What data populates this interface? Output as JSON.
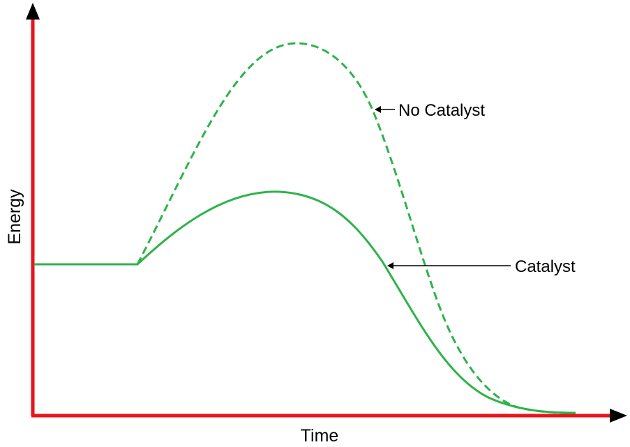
{
  "diagram": {
    "x_axis_label": "Time",
    "y_axis_label": "Energy",
    "annotations": {
      "no_catalyst": "No Catalyst",
      "catalyst": "Catalyst"
    },
    "curves": [
      {
        "label": "No Catalyst",
        "style": "dashed"
      },
      {
        "label": "Catalyst",
        "style": "solid"
      }
    ],
    "colors": {
      "axes": "#e8141c",
      "curve": "#2db34a",
      "text": "#000000"
    }
  }
}
